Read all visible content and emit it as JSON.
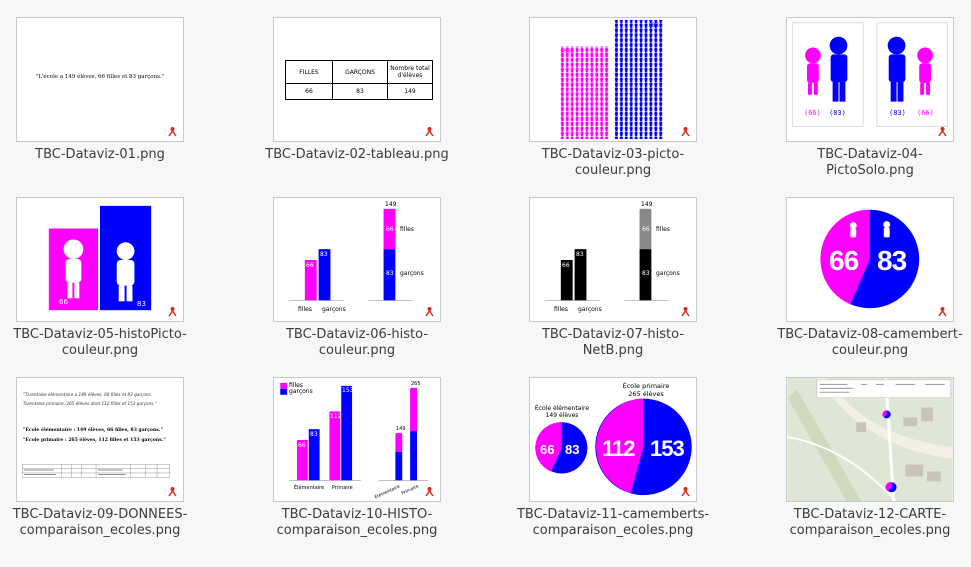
{
  "colors": {
    "magenta": "#ff00ff",
    "blue": "#0000ff",
    "red": "#d42a1f",
    "grey": "#888888",
    "black": "#000000"
  },
  "files": [
    {
      "name": "TBC-Dataviz-01.png",
      "thumb_text": "\"L'école a 149 élèves, 66 filles et 83 garçons.\""
    },
    {
      "name": "TBC-Dataviz-02-tableau.png",
      "table": {
        "headers": [
          "FILLES",
          "GARÇONS",
          "Nombre total d'élèves"
        ],
        "values": [
          "66",
          "83",
          "149"
        ]
      }
    },
    {
      "name": "TBC-Dataviz-03-picto-couleur.png",
      "labels": [
        "(66)",
        "(83)"
      ]
    },
    {
      "name": "TBC-Dataviz-04-PictoSolo.png",
      "labels_left": [
        "(66)",
        "(83)"
      ],
      "labels_right": [
        "(83)",
        "(66)"
      ]
    },
    {
      "name": "TBC-Dataviz-05-histoPicto-couleur.png",
      "labels": [
        "66",
        "83"
      ]
    },
    {
      "name": "TBC-Dataviz-06-histo-couleur.png",
      "values": [
        "66",
        "83"
      ],
      "x_labels": [
        "filles",
        "garçons"
      ],
      "stack_total": "149",
      "stack_labels": [
        "filles",
        "garçons"
      ]
    },
    {
      "name": "TBC-Dataviz-07-histo-NetB.png",
      "values": [
        "66",
        "83"
      ],
      "x_labels": [
        "filles",
        "garçons"
      ],
      "stack_total": "149",
      "stack_labels": [
        "filles",
        "garçons"
      ]
    },
    {
      "name": "TBC-Dataviz-08-camembert-couleur.png",
      "values": [
        "66",
        "83"
      ]
    },
    {
      "name": "TBC-Dataviz-09-DONNEES-comparaison_ecoles.png",
      "handwritten": [
        "\"Tarentaise élémentaire a 149 élèves, 66 filles et 83 garçons.",
        "Tarentaise primaire, 265 élèves dont 112 filles et 153 garçons.\""
      ],
      "lines": [
        "\"École élémentaire : 149 élèves, 66 filles, 83 garçons.\"",
        "\"École primaire : 265 élèves, 112 filles et 153 garçons.\""
      ]
    },
    {
      "name": "TBC-Dataviz-10-HISTO-comparaison_ecoles.png",
      "legend": [
        "filles",
        "garçons"
      ],
      "values": [
        "66",
        "83",
        "112",
        "153"
      ],
      "x_labels": [
        "Élémentaire",
        "Primaire"
      ],
      "stack_totals": [
        "149",
        "265"
      ],
      "stack_labels": [
        "Élémentaire",
        "Primaire"
      ]
    },
    {
      "name": "TBC-Dataviz-11-camemberts-comparaison_ecoles.png",
      "small_title": [
        "École élémentaire",
        "149 élèves"
      ],
      "big_title": [
        "École primaire",
        "265 élèves"
      ],
      "small_values": [
        "66",
        "83"
      ],
      "big_values": [
        "112",
        "153"
      ]
    },
    {
      "name": "TBC-Dataviz-12-CARTE-comparaison_ecoles.png"
    }
  ]
}
